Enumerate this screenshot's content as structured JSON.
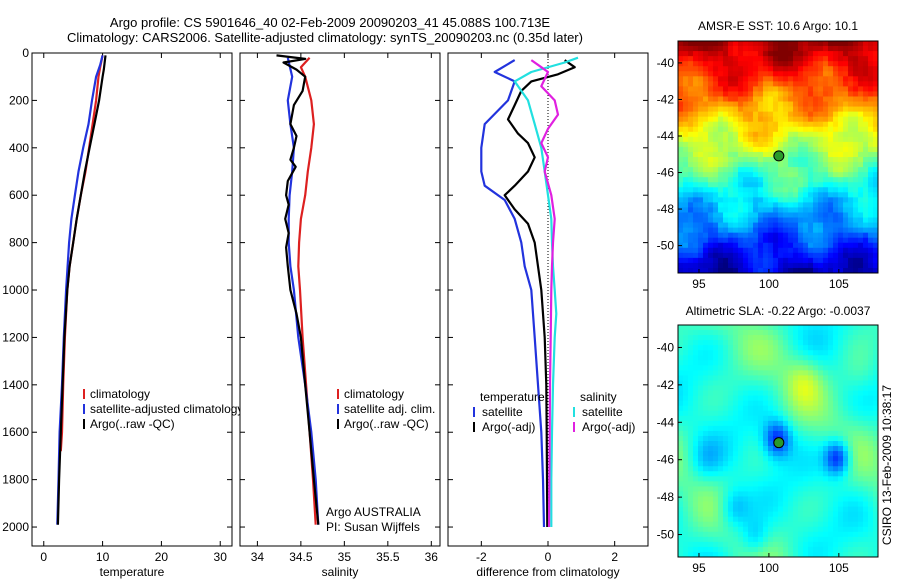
{
  "title": {
    "line1": "Argo profile: CS 5901646_40 02-Feb-2009 20090203_41 45.088S 100.713E",
    "line2": "Climatology: CARS2006. Satellite-adjusted climatology: synTS_20090203.nc (0.35d later)"
  },
  "credit": {
    "owner": "Argo AUSTRALIA",
    "pi": "PI: Susan Wijffels",
    "stamp": "CSIRO 13-Feb-2009 10:38:17"
  },
  "colors": {
    "climatology": "#dd2020",
    "satellite": "#2233dd",
    "argo": "#000000",
    "salinity_satellite": "#22e0e0",
    "salinity_argo": "#e020e0",
    "marker_fill": "#2a9a2a"
  },
  "chart_data": [
    {
      "type": "line",
      "id": "temperature",
      "xlabel": "temperature",
      "ylabel": "",
      "xlim": [
        -2,
        32
      ],
      "ylim": [
        2080,
        0
      ],
      "xticks": [
        "0",
        "10",
        "20",
        "30"
      ],
      "xtick_values": [
        0,
        10,
        20,
        30
      ],
      "yticks": [
        "0",
        "200",
        "400",
        "600",
        "800",
        "1000",
        "1200",
        "1400",
        "1600",
        "1800",
        "2000"
      ],
      "ytick_values": [
        0,
        200,
        400,
        600,
        800,
        1000,
        1200,
        1400,
        1600,
        1800,
        2000
      ],
      "legend": [
        "climatology",
        "satellite-adjusted climatology",
        "Argo(..raw -QC)"
      ],
      "series": [
        {
          "name": "climatology",
          "color_key": "climatology",
          "points": [
            [
              10.0,
              10
            ],
            [
              9.6,
              60
            ],
            [
              9.3,
              100
            ],
            [
              8.9,
              200
            ],
            [
              8.3,
              300
            ],
            [
              7.7,
              400
            ],
            [
              7.1,
              500
            ],
            [
              6.3,
              600
            ],
            [
              5.6,
              700
            ],
            [
              5.0,
              800
            ],
            [
              4.4,
              900
            ],
            [
              4.0,
              1000
            ],
            [
              3.6,
              1200
            ],
            [
              3.3,
              1400
            ],
            [
              3.1,
              1600
            ],
            [
              2.9,
              1680
            ]
          ]
        },
        {
          "name": "satellite-adjusted climatology",
          "color_key": "satellite",
          "points": [
            [
              10.0,
              10
            ],
            [
              9.6,
              50
            ],
            [
              8.9,
              100
            ],
            [
              8.2,
              200
            ],
            [
              7.6,
              300
            ],
            [
              6.7,
              400
            ],
            [
              5.9,
              500
            ],
            [
              5.3,
              600
            ],
            [
              4.7,
              700
            ],
            [
              4.3,
              800
            ],
            [
              3.8,
              1000
            ],
            [
              3.4,
              1200
            ],
            [
              3.1,
              1400
            ],
            [
              2.7,
              1600
            ],
            [
              2.5,
              1800
            ],
            [
              2.3,
              1990
            ]
          ]
        },
        {
          "name": "Argo(..raw -QC)",
          "color_key": "argo",
          "points": [
            [
              10.5,
              10
            ],
            [
              10.2,
              70
            ],
            [
              10.0,
              100
            ],
            [
              9.4,
              200
            ],
            [
              8.6,
              300
            ],
            [
              7.8,
              400
            ],
            [
              7.0,
              500
            ],
            [
              6.3,
              600
            ],
            [
              5.6,
              700
            ],
            [
              5.0,
              800
            ],
            [
              4.4,
              900
            ],
            [
              4.0,
              1000
            ],
            [
              3.5,
              1200
            ],
            [
              3.2,
              1400
            ],
            [
              2.9,
              1600
            ],
            [
              2.6,
              1800
            ],
            [
              2.4,
              1990
            ]
          ]
        }
      ]
    },
    {
      "type": "line",
      "id": "salinity",
      "xlabel": "salinity",
      "ylabel": "",
      "xlim": [
        33.8,
        36.1
      ],
      "ylim": [
        2080,
        0
      ],
      "xticks": [
        "34",
        "34.5",
        "35",
        "35.5",
        "36"
      ],
      "xtick_values": [
        34,
        34.5,
        35,
        35.5,
        36
      ],
      "legend": [
        "climatology",
        "satellite adj. clim.",
        "Argo(..raw -QC)"
      ],
      "series": [
        {
          "name": "climatology",
          "color_key": "climatology",
          "points": [
            [
              34.6,
              20
            ],
            [
              34.5,
              60
            ],
            [
              34.55,
              100
            ],
            [
              34.62,
              200
            ],
            [
              34.65,
              300
            ],
            [
              34.62,
              400
            ],
            [
              34.58,
              500
            ],
            [
              34.55,
              600
            ],
            [
              34.5,
              700
            ],
            [
              34.48,
              800
            ],
            [
              34.47,
              900
            ],
            [
              34.49,
              1000
            ],
            [
              34.52,
              1200
            ],
            [
              34.56,
              1400
            ],
            [
              34.6,
              1600
            ],
            [
              34.64,
              1800
            ],
            [
              34.67,
              1990
            ]
          ]
        },
        {
          "name": "satellite adj. clim.",
          "color_key": "satellite",
          "points": [
            [
              34.35,
              20
            ],
            [
              34.4,
              100
            ],
            [
              34.35,
              200
            ],
            [
              34.38,
              300
            ],
            [
              34.42,
              400
            ],
            [
              34.4,
              500
            ],
            [
              34.37,
              600
            ],
            [
              34.36,
              700
            ],
            [
              34.36,
              800
            ],
            [
              34.38,
              900
            ],
            [
              34.42,
              1000
            ],
            [
              34.47,
              1200
            ],
            [
              34.55,
              1400
            ],
            [
              34.62,
              1600
            ],
            [
              34.67,
              1800
            ],
            [
              34.7,
              1990
            ]
          ]
        },
        {
          "name": "Argo(..raw -QC)",
          "color_key": "argo",
          "points": [
            [
              34.22,
              10
            ],
            [
              34.55,
              25
            ],
            [
              34.3,
              40
            ],
            [
              34.45,
              70
            ],
            [
              34.55,
              100
            ],
            [
              34.52,
              160
            ],
            [
              34.42,
              220
            ],
            [
              34.38,
              300
            ],
            [
              34.45,
              350
            ],
            [
              34.42,
              400
            ],
            [
              34.38,
              450
            ],
            [
              34.44,
              480
            ],
            [
              34.35,
              540
            ],
            [
              34.33,
              600
            ],
            [
              34.36,
              640
            ],
            [
              34.32,
              700
            ],
            [
              34.36,
              760
            ],
            [
              34.33,
              820
            ],
            [
              34.35,
              900
            ],
            [
              34.38,
              1000
            ],
            [
              34.45,
              1100
            ],
            [
              34.5,
              1200
            ],
            [
              34.55,
              1400
            ],
            [
              34.6,
              1600
            ],
            [
              34.65,
              1800
            ],
            [
              34.7,
              1990
            ]
          ]
        }
      ]
    },
    {
      "type": "line",
      "id": "difference",
      "xlabel": "difference from climatology",
      "ylabel": "",
      "xlim": [
        -3,
        3
      ],
      "ylim": [
        2080,
        0
      ],
      "xticks": [
        "-2",
        "0",
        "2"
      ],
      "xtick_values": [
        -2,
        0,
        2
      ],
      "legend_left_title": "temperature",
      "legend_left": [
        "satellite",
        "Argo(-adj)"
      ],
      "legend_right_title": "salinity",
      "legend_right": [
        "satellite",
        "Argo(-adj)"
      ],
      "series": [
        {
          "name": "temperature satellite",
          "color_key": "satellite",
          "points": [
            [
              -1.0,
              30
            ],
            [
              -1.6,
              80
            ],
            [
              -1.0,
              120
            ],
            [
              -1.2,
              200
            ],
            [
              -1.9,
              300
            ],
            [
              -2.0,
              400
            ],
            [
              -2.0,
              500
            ],
            [
              -1.9,
              560
            ],
            [
              -1.3,
              620
            ],
            [
              -1.0,
              700
            ],
            [
              -0.8,
              800
            ],
            [
              -0.7,
              900
            ],
            [
              -0.5,
              1000
            ],
            [
              -0.4,
              1200
            ],
            [
              -0.3,
              1400
            ],
            [
              -0.2,
              1600
            ],
            [
              -0.15,
              1800
            ],
            [
              -0.12,
              2000
            ]
          ]
        },
        {
          "name": "temperature Argo(-adj)",
          "color_key": "argo",
          "points": [
            [
              0.5,
              30
            ],
            [
              0.8,
              60
            ],
            [
              0.3,
              90
            ],
            [
              -0.5,
              120
            ],
            [
              -0.8,
              160
            ],
            [
              -1.0,
              220
            ],
            [
              -1.2,
              280
            ],
            [
              -0.9,
              340
            ],
            [
              -0.6,
              380
            ],
            [
              -0.4,
              440
            ],
            [
              -0.6,
              500
            ],
            [
              -1.0,
              560
            ],
            [
              -1.3,
              600
            ],
            [
              -1.0,
              660
            ],
            [
              -0.6,
              720
            ],
            [
              -0.4,
              800
            ],
            [
              -0.3,
              900
            ],
            [
              -0.2,
              1000
            ],
            [
              -0.1,
              1200
            ],
            [
              -0.05,
              1400
            ],
            [
              -0.04,
              1600
            ],
            [
              -0.03,
              1800
            ],
            [
              -0.02,
              2000
            ]
          ]
        },
        {
          "name": "salinity satellite",
          "color_key": "salinity_satellite",
          "points": [
            [
              0.9,
              20
            ],
            [
              0.5,
              40
            ],
            [
              -0.5,
              80
            ],
            [
              -1.0,
              120
            ],
            [
              -0.6,
              200
            ],
            [
              -0.4,
              300
            ],
            [
              -0.2,
              400
            ],
            [
              -0.1,
              500
            ],
            [
              0.0,
              600
            ],
            [
              0.1,
              700
            ],
            [
              0.12,
              800
            ],
            [
              0.15,
              900
            ],
            [
              0.2,
              1000
            ],
            [
              0.25,
              1100
            ],
            [
              0.2,
              1200
            ],
            [
              0.15,
              1400
            ],
            [
              0.12,
              1600
            ],
            [
              0.1,
              1800
            ],
            [
              0.1,
              2000
            ]
          ]
        },
        {
          "name": "salinity Argo(-adj)",
          "color_key": "salinity_argo",
          "points": [
            [
              -0.5,
              30
            ],
            [
              -0.2,
              60
            ],
            [
              0.0,
              80
            ],
            [
              -0.2,
              140
            ],
            [
              0.2,
              200
            ],
            [
              0.3,
              260
            ],
            [
              0.0,
              320
            ],
            [
              -0.2,
              380
            ],
            [
              0.0,
              440
            ],
            [
              -0.1,
              500
            ],
            [
              0.1,
              600
            ],
            [
              0.2,
              700
            ],
            [
              0.15,
              800
            ],
            [
              0.12,
              900
            ],
            [
              0.1,
              1000
            ],
            [
              0.08,
              1200
            ],
            [
              0.06,
              1400
            ],
            [
              0.05,
              1600
            ],
            [
              0.04,
              1800
            ],
            [
              0.03,
              2000
            ]
          ]
        }
      ]
    },
    {
      "type": "heatmap",
      "id": "sst_map",
      "title": "AMSR-E SST: 10.6 Argo: 10.1",
      "xlim": [
        93.5,
        107.8
      ],
      "ylim": [
        -51.5,
        -38.8
      ],
      "xticks": [
        "95",
        "100",
        "105"
      ],
      "xtick_values": [
        95,
        100,
        105
      ],
      "yticks": [
        "-40",
        "-42",
        "-44",
        "-46",
        "-48",
        "-50"
      ],
      "ytick_values": [
        -40,
        -42,
        -44,
        -46,
        -48,
        -50
      ],
      "marker": {
        "lon": 100.71,
        "lat": -45.09
      }
    },
    {
      "type": "heatmap",
      "id": "sla_map",
      "title": "Altimetric SLA: -0.22 Argo: -0.0037",
      "xlim": [
        93.5,
        107.8
      ],
      "ylim": [
        -51.2,
        -38.8
      ],
      "xticks": [
        "95",
        "100",
        "105"
      ],
      "xtick_values": [
        95,
        100,
        105
      ],
      "yticks": [
        "-40",
        "-42",
        "-44",
        "-46",
        "-48",
        "-50"
      ],
      "ytick_values": [
        -40,
        -42,
        -44,
        -46,
        -48,
        -50
      ],
      "marker": {
        "lon": 100.71,
        "lat": -45.09
      }
    }
  ]
}
